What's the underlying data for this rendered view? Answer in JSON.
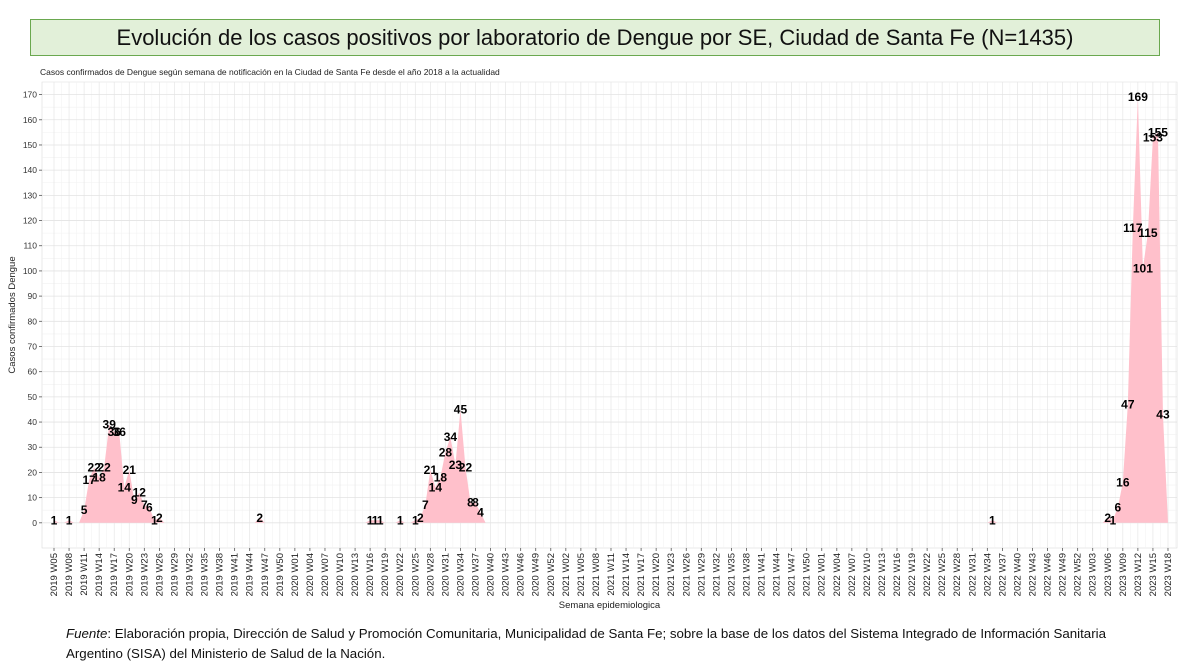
{
  "header": {
    "title": "Evolución de los casos positivos por laboratorio de Dengue por SE, Ciudad de Santa Fe  (N=1435)"
  },
  "footer": {
    "source_label": "Fuente",
    "source_text": ": Elaboración propia, Dirección de Salud y Promoción Comunitaria, Municipalidad de Santa Fe; sobre la base de los datos del Sistema Integrado de Información Sanitaria Argentino (SISA) del Ministerio de Salud de la Nación."
  },
  "chart_data": {
    "type": "area",
    "title": "Casos confirmados de Dengue según semana de notificación en la Ciudad de Santa Fe desde el año 2018 a la actualidad",
    "xlabel": "Semana epidemiologica",
    "ylabel": "Casos confirmados Dengue",
    "ylim": [
      -10,
      175
    ],
    "yticks": [
      0,
      10,
      20,
      30,
      40,
      50,
      60,
      70,
      80,
      90,
      100,
      110,
      120,
      130,
      140,
      150,
      160,
      170
    ],
    "x_tick_labels": [
      "2019 W05",
      "2019 W08",
      "2019 W11",
      "2019 W14",
      "2019 W17",
      "2019 W20",
      "2019 W23",
      "2019 W26",
      "2019 W29",
      "2019 W32",
      "2019 W35",
      "2019 W38",
      "2019 W41",
      "2019 W44",
      "2019 W47",
      "2019 W50",
      "2020 W01",
      "2020 W04",
      "2020 W07",
      "2020 W10",
      "2020 W13",
      "2020 W16",
      "2020 W19",
      "2020 W22",
      "2020 W25",
      "2020 W28",
      "2020 W31",
      "2020 W34",
      "2020 W37",
      "2020 W40",
      "2020 W43",
      "2020 W46",
      "2020 W49",
      "2020 W52",
      "2021 W02",
      "2021 W05",
      "2021 W08",
      "2021 W11",
      "2021 W14",
      "2021 W17",
      "2021 W20",
      "2021 W23",
      "2021 W26",
      "2021 W29",
      "2021 W32",
      "2021 W35",
      "2021 W38",
      "2021 W41",
      "2021 W44",
      "2021 W47",
      "2021 W50",
      "2022 W01",
      "2022 W04",
      "2022 W07",
      "2022 W10",
      "2022 W13",
      "2022 W16",
      "2022 W19",
      "2022 W22",
      "2022 W25",
      "2022 W28",
      "2022 W31",
      "2022 W34",
      "2022 W37",
      "2022 W40",
      "2022 W43",
      "2022 W46",
      "2022 W49",
      "2022 W52",
      "2023 W03",
      "2023 W06",
      "2023 W09",
      "2023 W12",
      "2023 W15",
      "2023 W18"
    ],
    "x_range": [
      0,
      223
    ],
    "fill_color": "#ffc0cb",
    "points": [
      {
        "x": 0,
        "y": 1,
        "label": "1"
      },
      {
        "x": 3,
        "y": 1,
        "label": "1"
      },
      {
        "x": 6,
        "y": 5,
        "label": "5"
      },
      {
        "x": 7,
        "y": 17,
        "label": "17"
      },
      {
        "x": 8,
        "y": 22,
        "label": "22"
      },
      {
        "x": 9,
        "y": 18,
        "label": "18"
      },
      {
        "x": 10,
        "y": 22,
        "label": "22"
      },
      {
        "x": 11,
        "y": 39,
        "label": "39"
      },
      {
        "x": 12,
        "y": 36,
        "label": "36"
      },
      {
        "x": 13,
        "y": 36,
        "label": "36"
      },
      {
        "x": 14,
        "y": 14,
        "label": "14"
      },
      {
        "x": 15,
        "y": 21,
        "label": "21"
      },
      {
        "x": 16,
        "y": 9,
        "label": "9"
      },
      {
        "x": 17,
        "y": 12,
        "label": "12"
      },
      {
        "x": 18,
        "y": 7,
        "label": "7"
      },
      {
        "x": 19,
        "y": 6,
        "label": "6"
      },
      {
        "x": 20,
        "y": 1,
        "label": "1"
      },
      {
        "x": 21,
        "y": 2,
        "label": "2"
      },
      {
        "x": 41,
        "y": 2,
        "label": "2"
      },
      {
        "x": 63,
        "y": 1,
        "label": "1"
      },
      {
        "x": 64,
        "y": 1,
        "label": "1"
      },
      {
        "x": 65,
        "y": 1,
        "label": "1"
      },
      {
        "x": 69,
        "y": 1,
        "label": "1"
      },
      {
        "x": 72,
        "y": 1,
        "label": "1"
      },
      {
        "x": 73,
        "y": 2,
        "label": "2"
      },
      {
        "x": 74,
        "y": 7,
        "label": "7"
      },
      {
        "x": 75,
        "y": 21,
        "label": "21"
      },
      {
        "x": 76,
        "y": 14,
        "label": "14"
      },
      {
        "x": 77,
        "y": 18,
        "label": "18"
      },
      {
        "x": 78,
        "y": 28,
        "label": "28"
      },
      {
        "x": 79,
        "y": 34,
        "label": "34"
      },
      {
        "x": 80,
        "y": 23,
        "label": "23"
      },
      {
        "x": 81,
        "y": 45,
        "label": "45"
      },
      {
        "x": 82,
        "y": 22,
        "label": "22"
      },
      {
        "x": 83,
        "y": 8,
        "label": "8"
      },
      {
        "x": 84,
        "y": 8,
        "label": "8"
      },
      {
        "x": 85,
        "y": 4,
        "label": "4"
      },
      {
        "x": 187,
        "y": 1,
        "label": "1"
      },
      {
        "x": 210,
        "y": 2,
        "label": "2"
      },
      {
        "x": 211,
        "y": 1,
        "label": "1"
      },
      {
        "x": 212,
        "y": 6,
        "label": "6"
      },
      {
        "x": 213,
        "y": 16,
        "label": "16"
      },
      {
        "x": 214,
        "y": 47,
        "label": "47"
      },
      {
        "x": 215,
        "y": 117,
        "label": "117"
      },
      {
        "x": 216,
        "y": 169,
        "label": "169"
      },
      {
        "x": 217,
        "y": 101,
        "label": "101"
      },
      {
        "x": 218,
        "y": 115,
        "label": "115"
      },
      {
        "x": 219,
        "y": 153,
        "label": "153"
      },
      {
        "x": 220,
        "y": 155,
        "label": "155"
      },
      {
        "x": 221,
        "y": 43,
        "label": "43"
      }
    ]
  }
}
